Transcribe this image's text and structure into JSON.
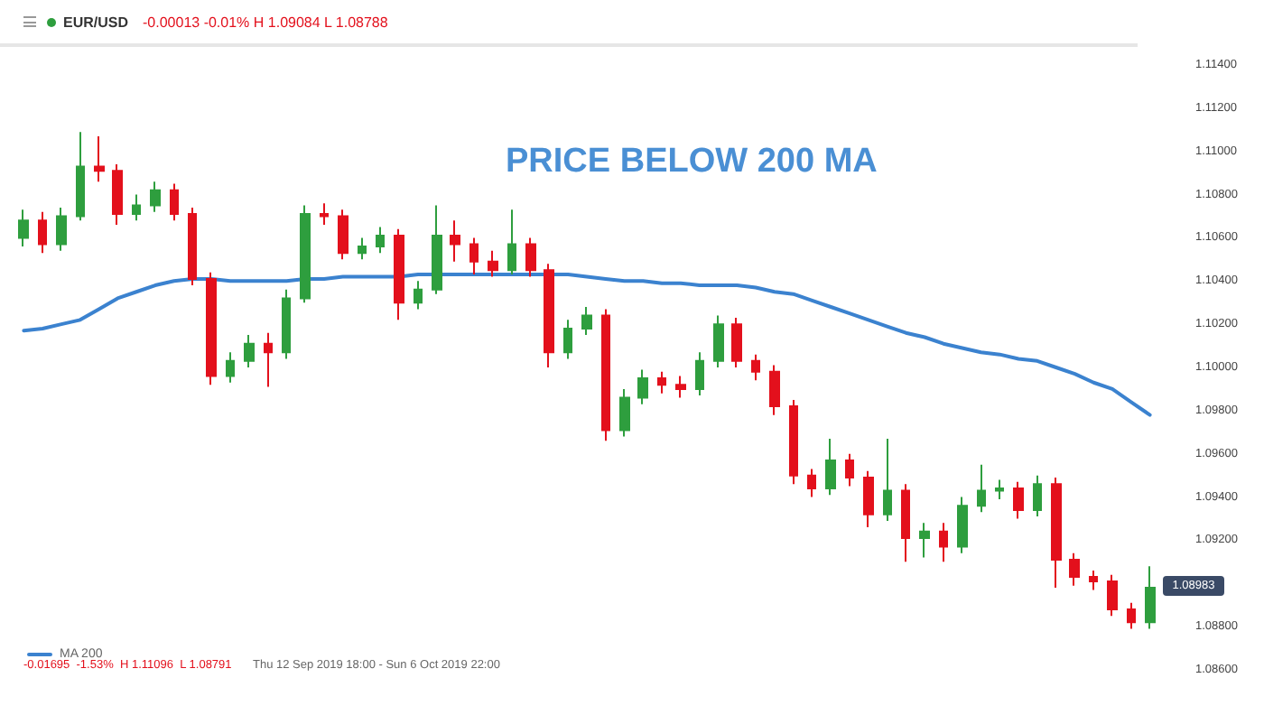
{
  "chart_data": {
    "type": "candlestick",
    "title": "EUR/USD",
    "subtitle": "-0.00013  -0.01%  H 1.09084  L 1.08788",
    "annotations": [
      "PRICE BELOW 200 MA",
      "-0.01695  -1.53%  H 1.11096  L 1.08791",
      "Thu 12 Sep 2019 18:00 - Sun 6 Oct 2019 22:00",
      "1.08983"
    ],
    "categories": [
      null,
      null,
      null,
      null,
      null,
      null,
      null,
      null,
      null,
      null,
      null,
      null,
      null,
      null,
      null,
      null,
      null,
      null,
      null,
      null,
      null,
      null,
      null,
      null,
      null,
      null,
      null,
      null,
      null,
      null,
      null,
      null,
      null,
      null,
      null,
      null,
      null,
      null,
      null,
      null,
      null,
      null,
      null,
      null,
      null,
      null,
      null,
      null,
      null,
      null,
      null,
      null,
      null,
      null,
      null,
      null,
      null,
      null,
      null,
      null,
      null
    ],
    "colors": [
      "#2e9e3e",
      "#e3101c",
      "#2e9e3e",
      "#2e9e3e",
      "#e3101c",
      "#e3101c",
      "#2e9e3e",
      "#2e9e3e",
      "#e3101c",
      "#e3101c",
      "#e3101c",
      "#2e9e3e",
      "#2e9e3e",
      "#e3101c",
      "#2e9e3e",
      "#2e9e3e",
      "#e3101c",
      "#e3101c",
      "#2e9e3e",
      "#2e9e3e",
      "#e3101c",
      "#2e9e3e",
      "#2e9e3e",
      "#e3101c",
      "#e3101c",
      "#e3101c",
      "#2e9e3e",
      "#e3101c",
      "#e3101c",
      "#2e9e3e",
      "#2e9e3e",
      "#e3101c",
      "#2e9e3e",
      "#2e9e3e",
      "#e3101c",
      "#e3101c",
      "#2e9e3e",
      "#2e9e3e",
      "#e3101c",
      "#e3101c",
      "#e3101c",
      "#e3101c",
      "#e3101c",
      "#2e9e3e",
      "#e3101c",
      "#e3101c",
      "#2e9e3e",
      "#e3101c",
      "#2e9e3e",
      "#e3101c",
      "#2e9e3e",
      "#2e9e3e",
      "#2e9e3e",
      "#e3101c",
      "#2e9e3e",
      "#e3101c",
      "#e3101c",
      "#e3101c",
      "#e3101c",
      "#e3101c",
      "#2e9e3e"
    ],
    "ohlc": [
      [
        1.106,
        1.1073,
        1.1056,
        1.1068
      ],
      [
        1.1068,
        1.1072,
        1.1053,
        1.1057
      ],
      [
        1.1057,
        1.1074,
        1.1054,
        1.107
      ],
      [
        1.107,
        1.1109,
        1.1068,
        1.1093
      ],
      [
        1.1093,
        1.1107,
        1.1086,
        1.1091
      ],
      [
        1.1091,
        1.1094,
        1.1066,
        1.1071
      ],
      [
        1.1071,
        1.108,
        1.1068,
        1.1075
      ],
      [
        1.1075,
        1.1086,
        1.1072,
        1.1082
      ],
      [
        1.1082,
        1.1085,
        1.1068,
        1.1071
      ],
      [
        1.1071,
        1.1074,
        1.1038,
        1.1041
      ],
      [
        1.1041,
        1.1044,
        1.0992,
        1.0996
      ],
      [
        1.0996,
        1.1007,
        1.0993,
        1.1003
      ],
      [
        1.1003,
        1.1015,
        1.1,
        1.1011
      ],
      [
        1.1011,
        1.1016,
        1.0991,
        1.1007
      ],
      [
        1.1007,
        1.1036,
        1.1004,
        1.1032
      ],
      [
        1.1032,
        1.1075,
        1.103,
        1.1071
      ],
      [
        1.1071,
        1.1076,
        1.1066,
        1.107
      ],
      [
        1.107,
        1.1073,
        1.105,
        1.1053
      ],
      [
        1.1053,
        1.106,
        1.105,
        1.1056
      ],
      [
        1.1056,
        1.1065,
        1.1053,
        1.1061
      ],
      [
        1.1061,
        1.1064,
        1.1022,
        1.103
      ],
      [
        1.103,
        1.104,
        1.1027,
        1.1036
      ],
      [
        1.1036,
        1.1075,
        1.1034,
        1.1061
      ],
      [
        1.1061,
        1.1068,
        1.1049,
        1.1057
      ],
      [
        1.1057,
        1.106,
        1.1043,
        1.1049
      ],
      [
        1.1049,
        1.1054,
        1.1042,
        1.1045
      ],
      [
        1.1045,
        1.1073,
        1.1043,
        1.1057
      ],
      [
        1.1057,
        1.106,
        1.1042,
        1.1045
      ],
      [
        1.1045,
        1.1048,
        1.1,
        1.1007
      ],
      [
        1.1007,
        1.1022,
        1.1004,
        1.1018
      ],
      [
        1.1018,
        1.1028,
        1.1015,
        1.1024
      ],
      [
        1.1024,
        1.1027,
        1.0966,
        1.0971
      ],
      [
        1.0971,
        1.099,
        1.0968,
        1.0986
      ],
      [
        1.0986,
        1.0999,
        1.0983,
        1.0995
      ],
      [
        1.0995,
        1.0998,
        1.0988,
        1.0992
      ],
      [
        1.0992,
        1.0996,
        1.0986,
        1.099
      ],
      [
        1.099,
        1.1007,
        1.0987,
        1.1003
      ],
      [
        1.1003,
        1.1024,
        1.1,
        1.102
      ],
      [
        1.102,
        1.1023,
        1.1,
        1.1003
      ],
      [
        1.1003,
        1.1006,
        1.0994,
        1.0998
      ],
      [
        1.0998,
        1.1001,
        1.0978,
        1.0982
      ],
      [
        1.0982,
        1.0985,
        1.0946,
        1.095
      ],
      [
        1.095,
        1.0953,
        1.094,
        1.0944
      ],
      [
        1.0944,
        1.0967,
        1.0941,
        1.0957
      ],
      [
        1.0957,
        1.096,
        1.0945,
        1.0949
      ],
      [
        1.0949,
        1.0952,
        1.0926,
        1.0932
      ],
      [
        1.0932,
        1.0967,
        1.0929,
        1.0943
      ],
      [
        1.0943,
        1.0946,
        1.091,
        1.0921
      ],
      [
        1.0921,
        1.0928,
        1.0912,
        1.0924
      ],
      [
        1.0924,
        1.0928,
        1.091,
        1.0917
      ],
      [
        1.0917,
        1.094,
        1.0914,
        1.0936
      ],
      [
        1.0936,
        1.0955,
        1.0933,
        1.0943
      ],
      [
        1.0943,
        1.0948,
        1.0939,
        1.0944
      ],
      [
        1.0944,
        1.0947,
        1.093,
        1.0934
      ],
      [
        1.0934,
        1.095,
        1.0931,
        1.0946
      ],
      [
        1.0946,
        1.0949,
        1.0898,
        1.0911
      ],
      [
        1.0911,
        1.0914,
        1.0899,
        1.0903
      ],
      [
        1.0903,
        1.0906,
        1.0897,
        1.0901
      ],
      [
        1.0901,
        1.0904,
        1.0885,
        1.0888
      ],
      [
        1.0888,
        1.0891,
        1.0879,
        1.0882
      ],
      [
        1.0882,
        1.0908,
        1.0879,
        1.0898
      ]
    ],
    "series": [
      {
        "name": "MA 200",
        "type": "line",
        "color": "#3b82cf",
        "values": [
          1.1017,
          1.1018,
          1.102,
          1.1022,
          1.1027,
          1.1032,
          1.1035,
          1.1038,
          1.104,
          1.1041,
          1.1041,
          1.104,
          1.104,
          1.104,
          1.104,
          1.1041,
          1.1041,
          1.1042,
          1.1042,
          1.1042,
          1.1042,
          1.1043,
          1.1043,
          1.1043,
          1.1043,
          1.1043,
          1.1043,
          1.1043,
          1.1043,
          1.1043,
          1.1042,
          1.1041,
          1.104,
          1.104,
          1.1039,
          1.1039,
          1.1038,
          1.1038,
          1.1038,
          1.1037,
          1.1035,
          1.1034,
          1.1031,
          1.1028,
          1.1025,
          1.1022,
          1.1019,
          1.1016,
          1.1014,
          1.1011,
          1.1009,
          1.1007,
          1.1006,
          1.1004,
          1.1003,
          1.1,
          1.0997,
          1.0993,
          1.099,
          1.0984,
          1.0978
        ]
      }
    ],
    "ylim": [
      1.086,
      1.114
    ],
    "yticks": [
      {
        "value": 1.086,
        "label": "1.08600"
      },
      {
        "value": 1.088,
        "label": "1.08800"
      },
      {
        "value": 1.09,
        "label": null
      },
      {
        "value": 1.092,
        "label": "1.09200"
      },
      {
        "value": 1.094,
        "label": "1.09400"
      },
      {
        "value": 1.096,
        "label": "1.09600"
      },
      {
        "value": 1.098,
        "label": "1.09800"
      },
      {
        "value": 1.1,
        "label": "1.10000"
      },
      {
        "value": 1.102,
        "label": "1.10200"
      },
      {
        "value": 1.104,
        "label": "1.10400"
      },
      {
        "value": 1.106,
        "label": "1.10600"
      },
      {
        "value": 1.108,
        "label": "1.10800"
      },
      {
        "value": 1.11,
        "label": "1.11000"
      },
      {
        "value": 1.112,
        "label": "1.11200"
      },
      {
        "value": 1.114,
        "label": "1.11400"
      }
    ],
    "tick_labels": "y",
    "legend": "bottom left",
    "marker": "none",
    "line_style": "solid"
  }
}
